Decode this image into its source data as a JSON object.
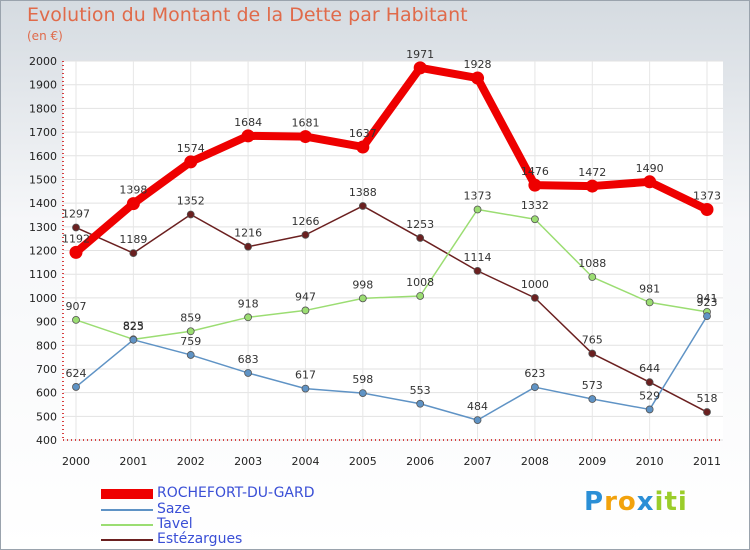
{
  "title": "Evolution du Montant de la Dette par Habitant",
  "subtitle": "(en €)",
  "logo": {
    "letters": [
      "P",
      "r",
      "o",
      "x",
      "i",
      "t",
      "i"
    ],
    "colors": [
      "#2b8fd6",
      "#f2a20c",
      "#f2a20c",
      "#2b8fd6",
      "#9bcd2a",
      "#9bcd2a",
      "#9bcd2a"
    ]
  },
  "chart_data": {
    "type": "line",
    "title": "Evolution du Montant de la Dette par Habitant",
    "subtitle": "(en €)",
    "x": [
      "2000",
      "2001",
      "2002",
      "2003",
      "2004",
      "2005",
      "2006",
      "2007",
      "2008",
      "2009",
      "2010",
      "2011"
    ],
    "ylim": [
      400,
      2000
    ],
    "yticks": [
      400,
      500,
      600,
      700,
      800,
      900,
      1000,
      1100,
      1200,
      1300,
      1400,
      1500,
      1600,
      1700,
      1800,
      1900,
      2000
    ],
    "grid": true,
    "legend_position": "bottom-left",
    "series": [
      {
        "name": "ROCHEFORT-DU-GARD",
        "color": "#ee0000",
        "values": [
          1192,
          1398,
          1574,
          1684,
          1681,
          1637,
          1971,
          1928,
          1476,
          1472,
          1490,
          1373
        ],
        "labels": [
          "1192",
          "1398",
          "1574",
          "1684",
          "1681",
          "1637",
          "1971",
          "1928",
          "1476",
          "1472",
          "1490",
          "1373"
        ]
      },
      {
        "name": "Saze",
        "color": "#5f93c5",
        "values": [
          624,
          823,
          759,
          683,
          617,
          598,
          553,
          484,
          623,
          573,
          529,
          923
        ],
        "labels": [
          "624",
          "823",
          "759",
          "683",
          "617",
          "598",
          "553",
          "484",
          "623",
          "573",
          "529",
          "923"
        ]
      },
      {
        "name": "Tavel",
        "color": "#9bdd72",
        "values": [
          907,
          825,
          859,
          918,
          947,
          998,
          1008,
          1373,
          1332,
          1088,
          981,
          941
        ],
        "labels": [
          "907",
          "825",
          "859",
          "918",
          "947",
          "998",
          "1008",
          "1373",
          "1332",
          "1088",
          "981",
          "941"
        ]
      },
      {
        "name": "Estézargues",
        "color": "#6b2020",
        "values": [
          1297,
          1189,
          1352,
          1216,
          1266,
          1388,
          1253,
          1114,
          1000,
          765,
          644,
          518
        ],
        "labels": [
          "1297",
          "1189",
          "1352",
          "1216",
          "1266",
          "1388",
          "1253",
          "1114",
          "1000",
          "765",
          "644",
          "518"
        ]
      }
    ]
  }
}
